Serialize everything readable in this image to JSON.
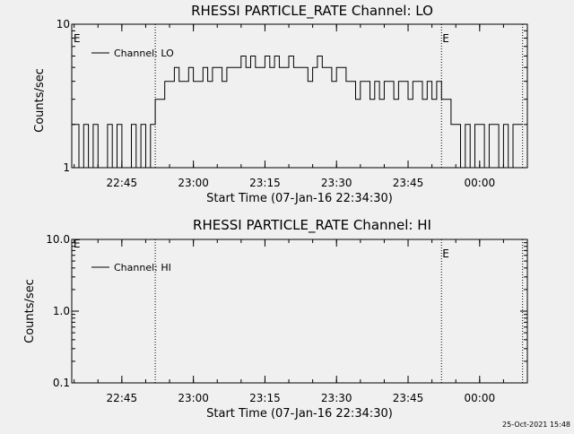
{
  "timestamp": "25-Oct-2021 15:48",
  "chart_data": [
    {
      "type": "line",
      "title": "RHESSI PARTICLE_RATE Channel: LO",
      "xlabel": "Start Time (07-Jan-16 22:34:30)",
      "ylabel": "Counts/sec",
      "yscale": "log",
      "ylim": [
        1,
        10
      ],
      "xlim": [
        "22:34:30",
        "00:10:00"
      ],
      "x_ticks": [
        "22:45",
        "23:00",
        "23:15",
        "23:30",
        "23:45",
        "00:00"
      ],
      "y_ticks": [
        "1",
        "10"
      ],
      "legend": {
        "label": "Channel: LO",
        "position": "top-left"
      },
      "markers": [
        {
          "time": "22:52:00",
          "label": ""
        },
        {
          "time": "23:52:00",
          "label": "E"
        },
        {
          "time": "00:09:00",
          "label": ""
        }
      ],
      "corner_label": "E",
      "series": [
        {
          "name": "Channel: LO",
          "x": [
            "22:34:30",
            "22:36:00",
            "22:37:00",
            "22:38:00",
            "22:39:00",
            "22:40:00",
            "22:41:00",
            "22:42:00",
            "22:43:00",
            "22:44:00",
            "22:45:00",
            "22:46:00",
            "22:47:00",
            "22:48:00",
            "22:49:00",
            "22:50:00",
            "22:51:00",
            "22:52:00",
            "22:53:00",
            "22:54:00",
            "22:55:00",
            "22:56:00",
            "22:57:00",
            "22:58:00",
            "22:59:00",
            "23:00:00",
            "23:01:00",
            "23:02:00",
            "23:03:00",
            "23:04:00",
            "23:05:00",
            "23:06:00",
            "23:07:00",
            "23:08:00",
            "23:09:00",
            "23:10:00",
            "23:11:00",
            "23:12:00",
            "23:13:00",
            "23:14:00",
            "23:15:00",
            "23:16:00",
            "23:17:00",
            "23:18:00",
            "23:19:00",
            "23:20:00",
            "23:21:00",
            "23:22:00",
            "23:23:00",
            "23:24:00",
            "23:25:00",
            "23:26:00",
            "23:27:00",
            "23:28:00",
            "23:29:00",
            "23:30:00",
            "23:31:00",
            "23:32:00",
            "23:33:00",
            "23:34:00",
            "23:35:00",
            "23:36:00",
            "23:37:00",
            "23:38:00",
            "23:39:00",
            "23:40:00",
            "23:41:00",
            "23:42:00",
            "23:43:00",
            "23:44:00",
            "23:45:00",
            "23:46:00",
            "23:47:00",
            "23:48:00",
            "23:49:00",
            "23:50:00",
            "23:51:00",
            "23:52:00",
            "23:53:00",
            "23:54:00",
            "23:55:00",
            "23:56:00",
            "23:57:00",
            "23:58:00",
            "23:59:00",
            "00:00:00",
            "00:01:00",
            "00:02:00",
            "00:03:00",
            "00:04:00",
            "00:05:00",
            "00:06:00",
            "00:07:00",
            "00:08:00"
          ],
          "y": [
            2,
            1,
            2,
            1,
            2,
            1,
            1,
            2,
            1,
            2,
            1,
            1,
            2,
            1,
            2,
            1,
            2,
            3,
            3,
            4,
            4,
            5,
            4,
            4,
            5,
            4,
            4,
            5,
            4,
            5,
            5,
            4,
            5,
            5,
            5,
            6,
            5,
            6,
            5,
            5,
            6,
            5,
            6,
            5,
            5,
            6,
            5,
            5,
            5,
            4,
            5,
            6,
            5,
            5,
            4,
            5,
            5,
            4,
            4,
            3,
            4,
            4,
            3,
            4,
            3,
            4,
            4,
            3,
            4,
            4,
            3,
            4,
            4,
            3,
            4,
            3,
            4,
            3,
            3,
            2,
            2,
            1,
            2,
            1,
            2,
            2,
            1,
            2,
            2,
            1,
            2,
            1,
            2,
            2
          ]
        }
      ]
    },
    {
      "type": "line",
      "title": "RHESSI PARTICLE_RATE Channel: HI",
      "xlabel": "Start Time (07-Jan-16 22:34:30)",
      "ylabel": "Counts/sec",
      "yscale": "log",
      "ylim": [
        0.1,
        10
      ],
      "xlim": [
        "22:34:30",
        "00:10:00"
      ],
      "x_ticks": [
        "22:45",
        "23:00",
        "23:15",
        "23:30",
        "23:45",
        "00:00"
      ],
      "y_ticks": [
        "0.1",
        "1.0",
        "10.0"
      ],
      "legend": {
        "label": "Channel: HI",
        "position": "top-left"
      },
      "markers": [
        {
          "time": "22:52:00",
          "label": ""
        },
        {
          "time": "23:52:00",
          "label": "E"
        },
        {
          "time": "00:09:00",
          "label": ""
        }
      ],
      "corner_label": "E",
      "series": [
        {
          "name": "Channel: HI",
          "x": [],
          "y": []
        }
      ]
    }
  ]
}
